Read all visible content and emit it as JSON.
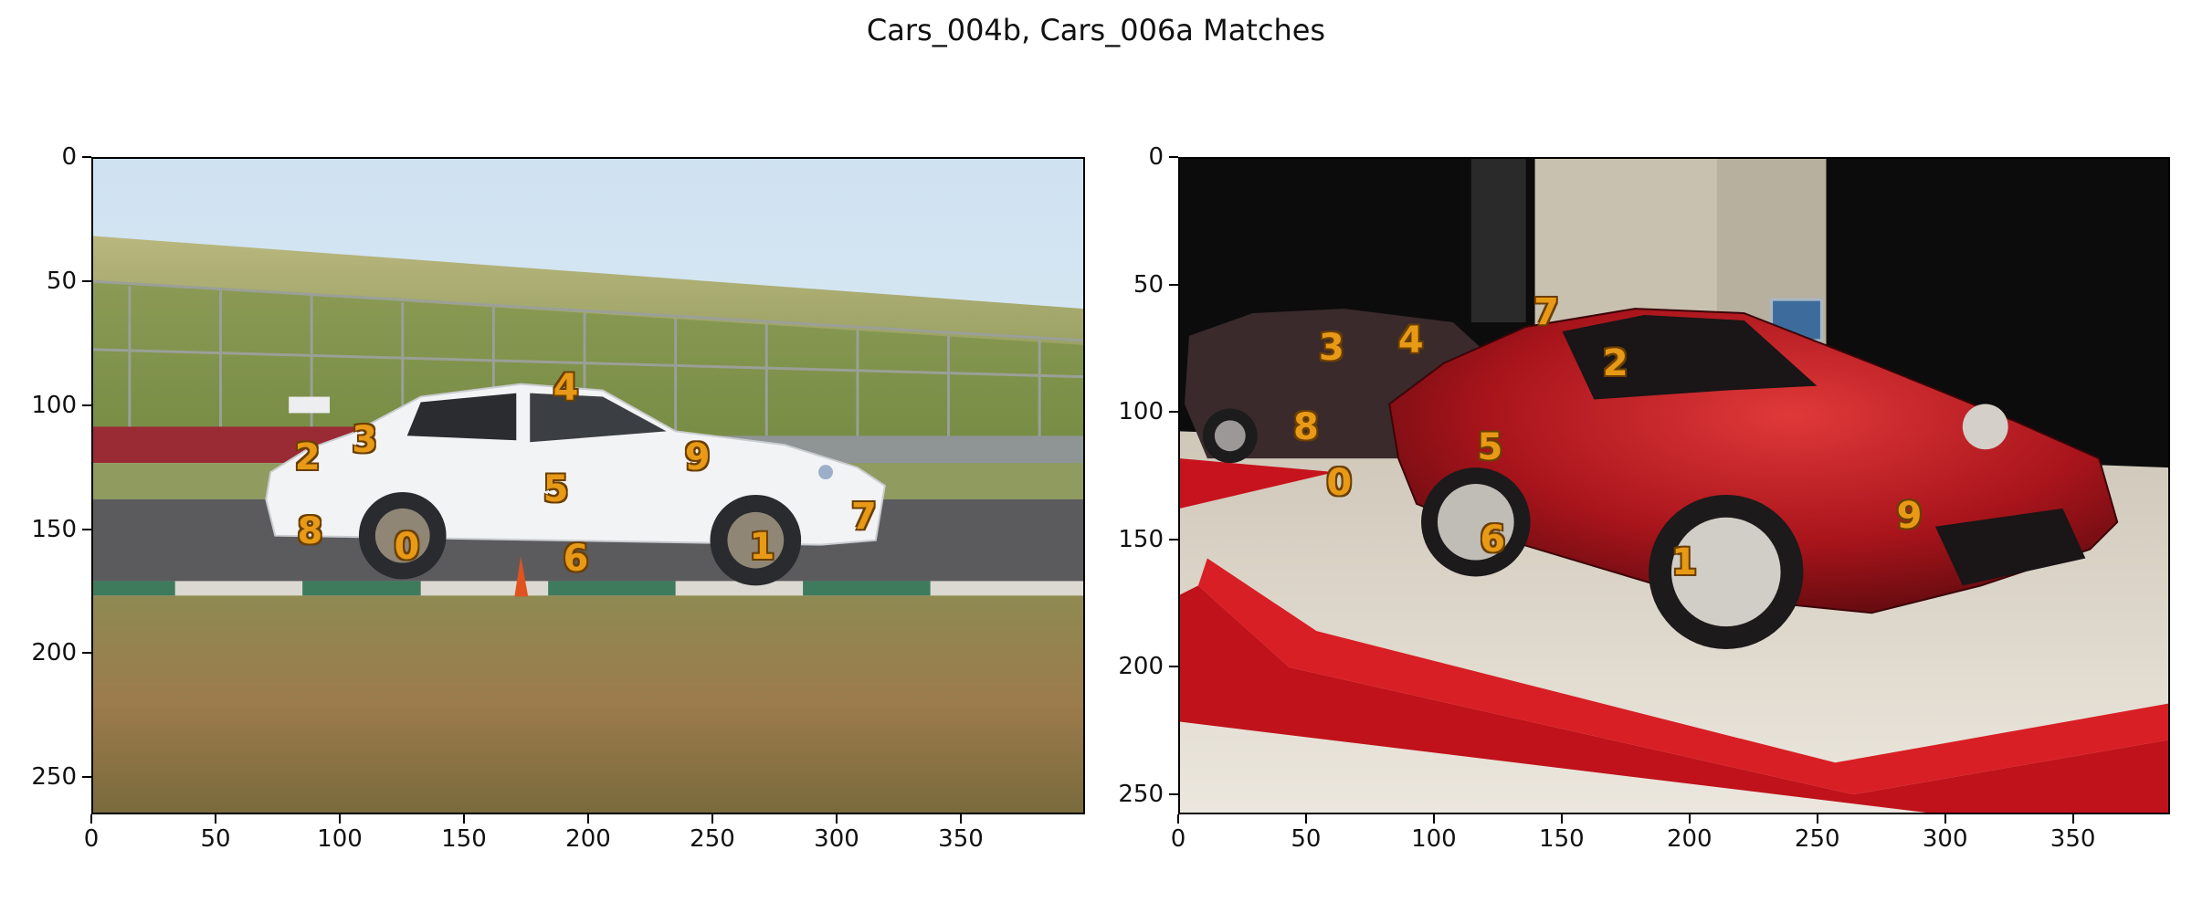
{
  "title": "Cars_004b, Cars_006a Matches",
  "panels": [
    {
      "name": "left",
      "xticks": [
        0,
        50,
        100,
        150,
        200,
        250,
        300,
        350
      ],
      "yticks": [
        0,
        50,
        100,
        150,
        200,
        250
      ],
      "xlim": [
        0,
        400
      ],
      "ylim": [
        265,
        0
      ],
      "points": [
        {
          "label": "0",
          "x": 127,
          "y": 157
        },
        {
          "label": "1",
          "x": 270,
          "y": 157
        },
        {
          "label": "2",
          "x": 87,
          "y": 121
        },
        {
          "label": "3",
          "x": 110,
          "y": 114
        },
        {
          "label": "4",
          "x": 191,
          "y": 93
        },
        {
          "label": "5",
          "x": 187,
          "y": 134
        },
        {
          "label": "6",
          "x": 195,
          "y": 162
        },
        {
          "label": "7",
          "x": 311,
          "y": 145
        },
        {
          "label": "8",
          "x": 88,
          "y": 151
        },
        {
          "label": "9",
          "x": 244,
          "y": 121
        }
      ]
    },
    {
      "name": "right",
      "xticks": [
        0,
        50,
        100,
        150,
        200,
        250,
        300,
        350
      ],
      "yticks": [
        0,
        50,
        100,
        150,
        200,
        250
      ],
      "xlim": [
        0,
        388
      ],
      "ylim": [
        258,
        0
      ],
      "points": [
        {
          "label": "0",
          "x": 63,
          "y": 128
        },
        {
          "label": "1",
          "x": 198,
          "y": 159
        },
        {
          "label": "2",
          "x": 171,
          "y": 81
        },
        {
          "label": "3",
          "x": 60,
          "y": 75
        },
        {
          "label": "4",
          "x": 91,
          "y": 72
        },
        {
          "label": "5",
          "x": 122,
          "y": 114
        },
        {
          "label": "6",
          "x": 123,
          "y": 150
        },
        {
          "label": "7",
          "x": 144,
          "y": 61
        },
        {
          "label": "8",
          "x": 50,
          "y": 106
        },
        {
          "label": "9",
          "x": 286,
          "y": 141
        }
      ]
    }
  ]
}
